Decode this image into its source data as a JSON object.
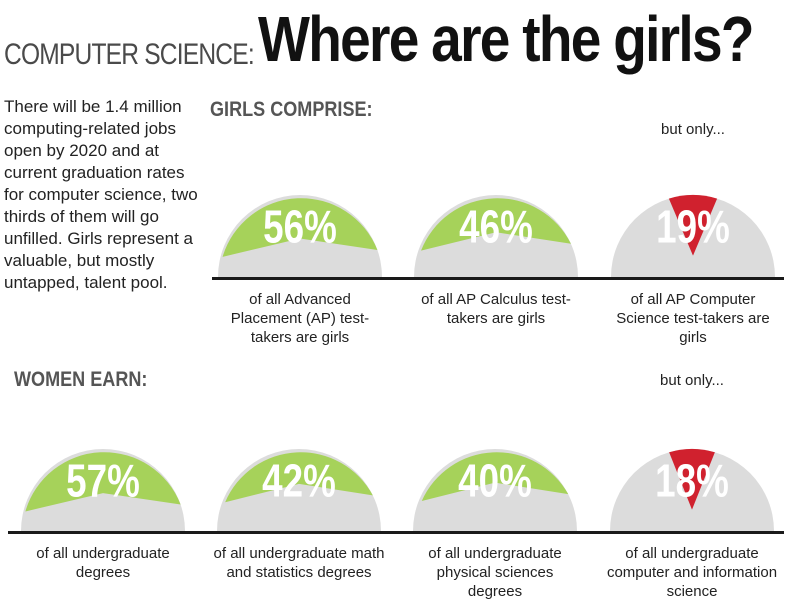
{
  "header": {
    "title_small": "COMPUTER SCIENCE:",
    "title_big": "Where are the girls?"
  },
  "intro_text": "There will be 1.4 million computing-related jobs open by 2020 and at current graduation rates for computer science, two thirds of them will go unfilled. Girls represent a valuable, but mostly untapped, talent pool.",
  "colors": {
    "green": "#a6d25a",
    "gray": "#dcdcdc",
    "red": "#d0212e",
    "ink": "#1a1a1a"
  },
  "chart_data": [
    {
      "type": "pie",
      "section": "GIRLS COMPRISE:",
      "items": [
        {
          "value": 56,
          "label": "56%",
          "caption": "of all Advanced Placement (AP) test-takers are girls",
          "highlight": false,
          "note": ""
        },
        {
          "value": 46,
          "label": "46%",
          "caption": "of all AP Calculus test-takers are girls",
          "highlight": false,
          "note": ""
        },
        {
          "value": 19,
          "label": "19%",
          "caption": "of all AP Computer Science test-takers are girls",
          "highlight": true,
          "note": "but only..."
        }
      ]
    },
    {
      "type": "pie",
      "section": "WOMEN EARN:",
      "items": [
        {
          "value": 57,
          "label": "57%",
          "caption": "of all undergraduate degrees",
          "highlight": false,
          "note": ""
        },
        {
          "value": 42,
          "label": "42%",
          "caption": "of all undergraduate math and statistics degrees",
          "highlight": false,
          "note": ""
        },
        {
          "value": 40,
          "label": "40%",
          "caption": "of all undergraduate physical sciences degrees",
          "highlight": false,
          "note": ""
        },
        {
          "value": 18,
          "label": "18%",
          "caption": "of all undergraduate computer and information science",
          "highlight": true,
          "note": "but only..."
        }
      ]
    }
  ]
}
